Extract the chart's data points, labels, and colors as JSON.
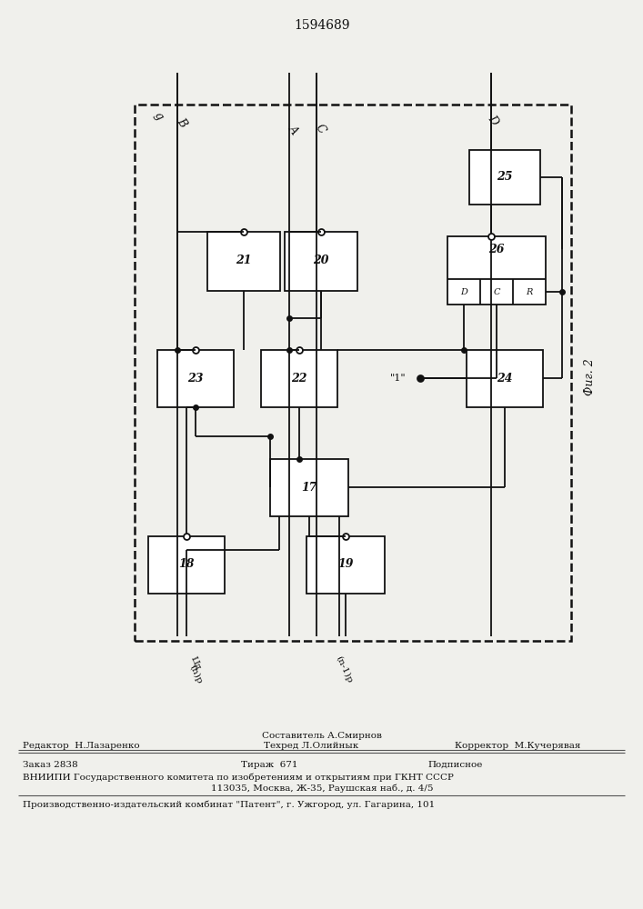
{
  "title": "1594689",
  "fig2_label": "Фиг. 2",
  "bg_color": "#f0f0ec",
  "line_color": "#111111",
  "footer": {
    "editor": "Редактор  Н.Лазаренко",
    "composer": "Составитель А.Смирнов",
    "techred": "Техред Л.Олийнык",
    "corrector": "Корректор  М.Кучерявая",
    "order": "Заказ 2838",
    "tirazh": "Тираж  671",
    "podpisnoe": "Подписное",
    "vniipи": "ВНИИПИ Государственного комитета по изобретениям и открытиям при ГКНТ СССР",
    "address": "113035, Москва, Ж-35, Раушская наб., д. 4/5",
    "patent": "Производственно-издательский комбинат \"Патент\", г. Ужгород, ул. Гагарина, 101"
  }
}
